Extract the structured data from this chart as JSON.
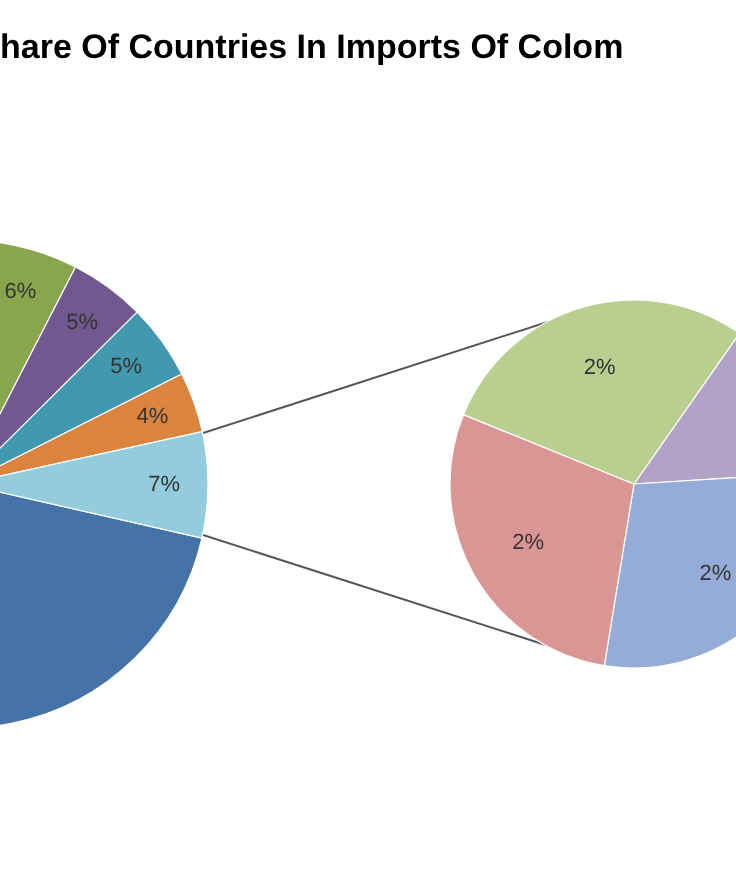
{
  "chart_data": [
    {
      "type": "pie",
      "title": "hare Of Countries In Imports Of Colom",
      "categories": [
        null,
        null,
        null,
        null,
        null,
        null
      ],
      "values": [
        73,
        6,
        5,
        5,
        4,
        7
      ],
      "colors": [
        "#4572a7",
        "#89a54e",
        "#71588f",
        "#4198af",
        "#db843d",
        "#93cddd"
      ],
      "value_labels": [
        null,
        "6%",
        "5%",
        "5%",
        "4%",
        "7%"
      ]
    },
    {
      "type": "pie",
      "categories": [
        null,
        null,
        null,
        null
      ],
      "values": [
        1,
        2,
        2,
        2
      ],
      "colors": [
        "#b3a2c7",
        "#95acd6",
        "#d99694",
        "#b8cf8f"
      ],
      "value_labels": [
        null,
        "2%",
        "2%",
        "2%"
      ]
    }
  ]
}
